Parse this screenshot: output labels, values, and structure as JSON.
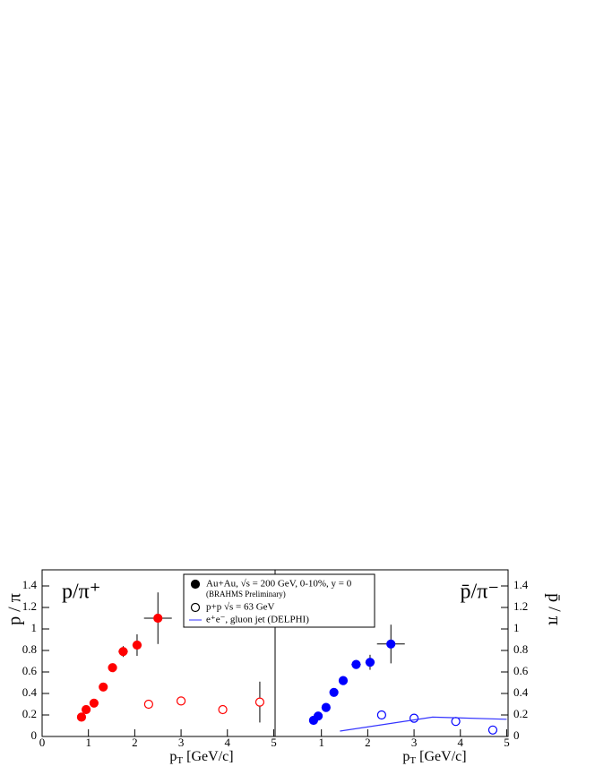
{
  "chart_data": [
    {
      "type": "scatter",
      "title": "p/π⁺",
      "ylabel": "p / π",
      "xlabel": {
        "main": "p",
        "sub": "T",
        "rest": " [GeV/c]"
      },
      "xlim": [
        0,
        5.03
      ],
      "ylim": [
        0,
        1.55
      ],
      "xticks": [
        0,
        1,
        2,
        3,
        4,
        5
      ],
      "yticks": [
        0,
        0.2,
        0.4,
        0.6,
        0.8,
        1,
        1.2,
        1.4
      ],
      "yaxis_side": "left",
      "series": [
        {
          "marker": "filled",
          "color": "#ff0000",
          "x": [
            0.85,
            0.95,
            1.12,
            1.32,
            1.52,
            1.75,
            2.05,
            2.5
          ],
          "values": [
            0.18,
            0.25,
            0.31,
            0.46,
            0.64,
            0.79,
            0.85,
            1.1
          ],
          "errors": [
            null,
            null,
            null,
            null,
            null,
            0.05,
            0.1,
            0.24
          ],
          "xerrors": [
            null,
            null,
            null,
            null,
            null,
            0.1,
            0.1,
            0.3
          ]
        },
        {
          "marker": "open",
          "color": "#ff0000",
          "x": [
            2.3,
            3.0,
            3.9,
            4.7
          ],
          "values": [
            0.3,
            0.33,
            0.25,
            0.32
          ],
          "errors": [
            0.04,
            0.02,
            0.04,
            0.19
          ],
          "xerrors": [
            null,
            null,
            null,
            null
          ]
        }
      ]
    },
    {
      "type": "scatter",
      "title": "p̄/π⁻",
      "ylabel": "p̄ / π",
      "xlabel": {
        "main": "p",
        "sub": "T",
        "rest": " [GeV/c]"
      },
      "xlim": [
        0,
        5.03
      ],
      "ylim": [
        0,
        1.55
      ],
      "xticks": [
        1,
        2,
        3,
        4,
        5
      ],
      "yticks": [
        0,
        0.2,
        0.4,
        0.6,
        0.8,
        1,
        1.2,
        1.4
      ],
      "yaxis_side": "right",
      "annotation": "(BRAHMS Preliminary)",
      "series": [
        {
          "name": "Au+Au, √s = 200 GeV, 0-10%, y = 0",
          "marker": "filled",
          "color": "#0000ff",
          "x": [
            0.83,
            0.93,
            1.1,
            1.27,
            1.47,
            1.75,
            2.05,
            2.5
          ],
          "values": [
            0.15,
            0.19,
            0.27,
            0.41,
            0.52,
            0.67,
            0.69,
            0.86
          ],
          "errors": [
            null,
            null,
            null,
            null,
            null,
            0.04,
            0.07,
            0.18
          ],
          "xerrors": [
            null,
            null,
            null,
            null,
            null,
            0.1,
            0.1,
            0.3
          ]
        },
        {
          "name": "p+p √s = 63 GeV",
          "marker": "open",
          "color": "#0000ff",
          "x": [
            2.3,
            3.0,
            3.9,
            4.7
          ],
          "values": [
            0.2,
            0.17,
            0.14,
            0.06
          ],
          "errors": [
            0.02,
            0.02,
            0.02,
            0.03
          ],
          "xerrors": [
            null,
            null,
            null,
            null
          ]
        },
        {
          "name": "e⁺e⁻, gluon jet (DELPHI)",
          "marker": "line",
          "color": "#3333ff",
          "x": [
            1.4,
            3.4,
            5.0
          ],
          "values": [
            0.05,
            0.18,
            0.16
          ]
        }
      ]
    }
  ]
}
